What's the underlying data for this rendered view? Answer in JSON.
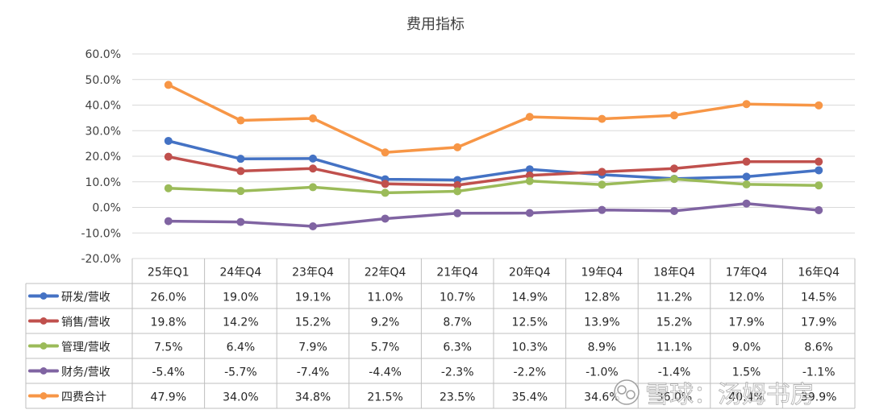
{
  "chart_data": {
    "type": "line",
    "title": "费用指标",
    "categories": [
      "25年Q1",
      "24年Q4",
      "23年Q4",
      "22年Q4",
      "21年Q4",
      "20年Q4",
      "19年Q4",
      "18年Q4",
      "17年Q4",
      "16年Q4"
    ],
    "ylim": [
      -20,
      60
    ],
    "yticks": [
      60,
      50,
      40,
      30,
      20,
      10,
      0,
      -10,
      -20
    ],
    "ytick_labels": [
      "60.0%",
      "50.0%",
      "40.0%",
      "30.0%",
      "20.0%",
      "10.0%",
      "0.0%",
      "-10.0%",
      "-20.0%"
    ],
    "grid": true,
    "legend": "data-table",
    "series": [
      {
        "name": "研发/营收",
        "color": "#4472C4",
        "values": [
          26.0,
          19.0,
          19.1,
          11.0,
          10.7,
          14.9,
          12.8,
          11.2,
          12.0,
          14.5
        ],
        "labels": [
          "26.0%",
          "19.0%",
          "19.1%",
          "11.0%",
          "10.7%",
          "14.9%",
          "12.8%",
          "11.2%",
          "12.0%",
          "14.5%"
        ]
      },
      {
        "name": "销售/营收",
        "color": "#C0504D",
        "values": [
          19.8,
          14.2,
          15.2,
          9.2,
          8.7,
          12.5,
          13.9,
          15.2,
          17.9,
          17.9
        ],
        "labels": [
          "19.8%",
          "14.2%",
          "15.2%",
          "9.2%",
          "8.7%",
          "12.5%",
          "13.9%",
          "15.2%",
          "17.9%",
          "17.9%"
        ]
      },
      {
        "name": "管理/营收",
        "color": "#9BBB59",
        "values": [
          7.5,
          6.4,
          7.9,
          5.7,
          6.3,
          10.3,
          8.9,
          11.1,
          9.0,
          8.6
        ],
        "labels": [
          "7.5%",
          "6.4%",
          "7.9%",
          "5.7%",
          "6.3%",
          "10.3%",
          "8.9%",
          "11.1%",
          "9.0%",
          "8.6%"
        ]
      },
      {
        "name": "财务/营收",
        "color": "#8064A2",
        "values": [
          -5.4,
          -5.7,
          -7.4,
          -4.4,
          -2.3,
          -2.2,
          -1.0,
          -1.4,
          1.5,
          -1.1
        ],
        "labels": [
          "-5.4%",
          "-5.7%",
          "-7.4%",
          "-4.4%",
          "-2.3%",
          "-2.2%",
          "-1.0%",
          "-1.4%",
          "1.5%",
          "-1.1%"
        ]
      },
      {
        "name": "四费合计",
        "color": "#F79646",
        "values": [
          47.9,
          34.0,
          34.8,
          21.5,
          23.5,
          35.4,
          34.6,
          36.0,
          40.4,
          39.9
        ],
        "labels": [
          "47.9%",
          "34.0%",
          "34.8%",
          "21.5%",
          "23.5%",
          "35.4%",
          "34.6%",
          "36.0%",
          "40.4%",
          "39.9%"
        ]
      }
    ]
  },
  "watermark": "雪球：汤姆书房"
}
